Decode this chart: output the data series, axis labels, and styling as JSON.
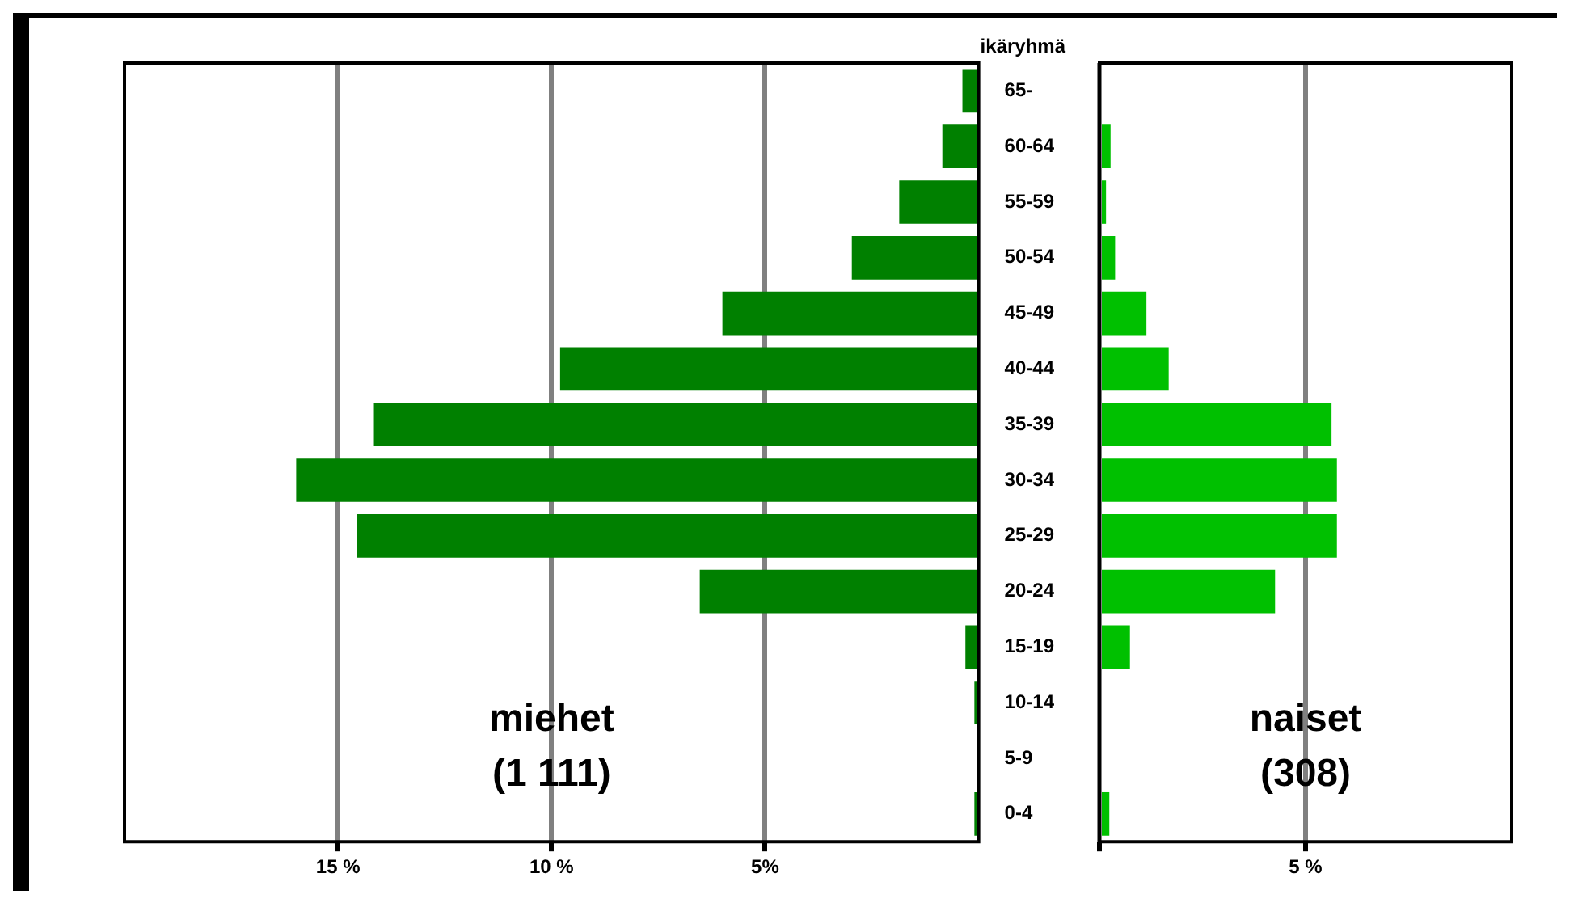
{
  "chart_data": [
    {
      "type": "bar",
      "orientation": "horizontal",
      "categories": [
        "65-",
        "60-64",
        "55-59",
        "50-54",
        "45-49",
        "40-44",
        "35-39",
        "30-34",
        "25-29",
        "20-24",
        "15-19",
        "10-14",
        "5-9",
        "0-4"
      ],
      "values": [
        0.38,
        0.85,
        1.86,
        2.97,
        6.0,
        9.8,
        14.16,
        15.98,
        14.56,
        6.53,
        0.31,
        0.1,
        0,
        0.1
      ],
      "color": "#008000",
      "xlim": [
        20,
        0
      ],
      "xticks": [
        {
          "value": 15,
          "label": "15 %"
        },
        {
          "value": 10,
          "label": "10 %"
        },
        {
          "value": 5,
          "label": "5%"
        }
      ],
      "grid": "x",
      "ylabel": "ikäryhmä",
      "annotations": [
        "miehet\n(1 111)"
      ]
    },
    {
      "type": "bar",
      "orientation": "horizontal",
      "tick_labels": "x",
      "categories": [
        null,
        null,
        null,
        null,
        null,
        null,
        null,
        null,
        null,
        null,
        null,
        null,
        null,
        null
      ],
      "values": [
        0,
        0.27,
        0.16,
        0.38,
        1.14,
        1.68,
        5.63,
        5.76,
        5.76,
        4.26,
        0.74,
        0,
        0,
        0.24
      ],
      "color": "#00c000",
      "xlim": [
        0,
        10
      ],
      "xticks": [
        {
          "value": 0,
          "label": null
        },
        {
          "value": 5,
          "label": "5 %"
        }
      ],
      "grid": "x",
      "annotations": [
        "naiset\n(308)"
      ]
    }
  ]
}
